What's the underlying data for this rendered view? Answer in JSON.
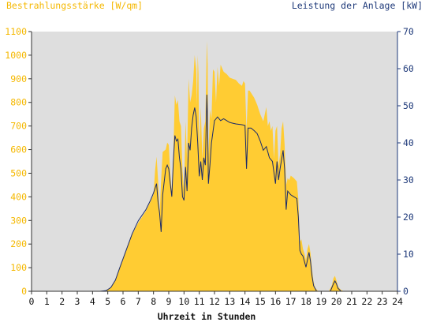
{
  "chart_data": {
    "type": "area",
    "left_axis_title": "Bestrahlungsstärke [W/qm]",
    "right_axis_title": "Leistung der Anlage [kW]",
    "xlabel": "Uhrzeit in Stunden",
    "x_ticks": [
      "0",
      "1",
      "2",
      "3",
      "4",
      "5",
      "6",
      "7",
      "8",
      "9",
      "10",
      "11",
      "12",
      "13",
      "14",
      "15",
      "16",
      "17",
      "18",
      "19",
      "20",
      "21",
      "22",
      "23",
      "24"
    ],
    "xlim": [
      0,
      24
    ],
    "ylim_left": [
      0,
      1100
    ],
    "ylim_right": [
      0,
      70
    ],
    "y_ticks_left": [
      "0",
      "100",
      "200",
      "300",
      "400",
      "500",
      "600",
      "700",
      "800",
      "900",
      "1000",
      "1100"
    ],
    "y_ticks_right": [
      "0",
      "10",
      "20",
      "30",
      "40",
      "50",
      "60",
      "70"
    ],
    "grid": false,
    "colors": {
      "irradiance_fill": "#ffcc33",
      "power_line": "#1a2a6a",
      "left_axis_text": "#f5b800",
      "right_axis_text": "#1f3a7a",
      "plot_background": "#dedede"
    },
    "series": [
      {
        "axis": "left",
        "style": "area",
        "points": [
          [
            0,
            0
          ],
          [
            4.5,
            0
          ],
          [
            4.9,
            3
          ],
          [
            5.2,
            15
          ],
          [
            5.5,
            45
          ],
          [
            5.8,
            100
          ],
          [
            6.2,
            170
          ],
          [
            6.6,
            240
          ],
          [
            7.0,
            290
          ],
          [
            7.5,
            340
          ],
          [
            7.8,
            380
          ],
          [
            8.0,
            410
          ],
          [
            8.1,
            510
          ],
          [
            8.2,
            570
          ],
          [
            8.3,
            470
          ],
          [
            8.4,
            330
          ],
          [
            8.5,
            470
          ],
          [
            8.6,
            590
          ],
          [
            8.8,
            600
          ],
          [
            8.9,
            630
          ],
          [
            9.0,
            620
          ],
          [
            9.1,
            500
          ],
          [
            9.2,
            420
          ],
          [
            9.3,
            580
          ],
          [
            9.4,
            830
          ],
          [
            9.5,
            790
          ],
          [
            9.6,
            810
          ],
          [
            9.7,
            720
          ],
          [
            9.8,
            700
          ],
          [
            9.9,
            510
          ],
          [
            10.0,
            430
          ],
          [
            10.1,
            720
          ],
          [
            10.2,
            560
          ],
          [
            10.3,
            900
          ],
          [
            10.4,
            800
          ],
          [
            10.5,
            830
          ],
          [
            10.6,
            890
          ],
          [
            10.7,
            1000
          ],
          [
            10.8,
            940
          ],
          [
            10.85,
            790
          ],
          [
            10.9,
            1000
          ],
          [
            10.95,
            920
          ],
          [
            11.0,
            600
          ],
          [
            11.1,
            780
          ],
          [
            11.2,
            560
          ],
          [
            11.3,
            690
          ],
          [
            11.4,
            720
          ],
          [
            11.5,
            1060
          ],
          [
            11.55,
            960
          ],
          [
            11.6,
            560
          ],
          [
            11.7,
            770
          ],
          [
            11.8,
            730
          ],
          [
            11.9,
            940
          ],
          [
            12.0,
            930
          ],
          [
            12.1,
            800
          ],
          [
            12.2,
            950
          ],
          [
            12.3,
            870
          ],
          [
            12.4,
            960
          ],
          [
            12.6,
            930
          ],
          [
            12.8,
            920
          ],
          [
            13.0,
            905
          ],
          [
            13.2,
            900
          ],
          [
            13.4,
            895
          ],
          [
            13.6,
            880
          ],
          [
            13.8,
            870
          ],
          [
            13.9,
            890
          ],
          [
            14.0,
            880
          ],
          [
            14.1,
            680
          ],
          [
            14.2,
            850
          ],
          [
            14.3,
            850
          ],
          [
            14.4,
            840
          ],
          [
            14.6,
            820
          ],
          [
            14.8,
            790
          ],
          [
            14.9,
            770
          ],
          [
            15.0,
            750
          ],
          [
            15.2,
            720
          ],
          [
            15.4,
            780
          ],
          [
            15.5,
            700
          ],
          [
            15.6,
            720
          ],
          [
            15.7,
            680
          ],
          [
            15.8,
            700
          ],
          [
            15.9,
            560
          ],
          [
            16.0,
            680
          ],
          [
            16.1,
            700
          ],
          [
            16.2,
            530
          ],
          [
            16.3,
            580
          ],
          [
            16.4,
            690
          ],
          [
            16.5,
            720
          ],
          [
            16.6,
            620
          ],
          [
            16.7,
            450
          ],
          [
            16.8,
            480
          ],
          [
            16.9,
            470
          ],
          [
            17.0,
            490
          ],
          [
            17.2,
            480
          ],
          [
            17.4,
            465
          ],
          [
            17.5,
            390
          ],
          [
            17.6,
            210
          ],
          [
            17.7,
            220
          ],
          [
            17.8,
            180
          ],
          [
            17.9,
            160
          ],
          [
            18.0,
            130
          ],
          [
            18.1,
            180
          ],
          [
            18.2,
            200
          ],
          [
            18.3,
            160
          ],
          [
            18.4,
            90
          ],
          [
            18.5,
            40
          ],
          [
            18.6,
            15
          ],
          [
            18.8,
            0
          ],
          [
            19.5,
            0
          ],
          [
            19.7,
            25
          ],
          [
            19.8,
            55
          ],
          [
            19.9,
            65
          ],
          [
            20.0,
            45
          ],
          [
            20.1,
            20
          ],
          [
            20.3,
            5
          ],
          [
            20.5,
            0
          ],
          [
            24,
            0
          ]
        ]
      },
      {
        "axis": "right",
        "style": "line",
        "points": [
          [
            0,
            0
          ],
          [
            4.5,
            0
          ],
          [
            4.9,
            0.2
          ],
          [
            5.2,
            1
          ],
          [
            5.5,
            3
          ],
          [
            5.8,
            6.5
          ],
          [
            6.2,
            11
          ],
          [
            6.6,
            15.5
          ],
          [
            7.0,
            19
          ],
          [
            7.5,
            22
          ],
          [
            7.8,
            24.5
          ],
          [
            8.0,
            26.5
          ],
          [
            8.2,
            29
          ],
          [
            8.3,
            24
          ],
          [
            8.4,
            21
          ],
          [
            8.5,
            16
          ],
          [
            8.6,
            26
          ],
          [
            8.8,
            33
          ],
          [
            8.9,
            34
          ],
          [
            9.0,
            33
          ],
          [
            9.1,
            29
          ],
          [
            9.2,
            25.5
          ],
          [
            9.3,
            35
          ],
          [
            9.4,
            42
          ],
          [
            9.5,
            40.5
          ],
          [
            9.6,
            41
          ],
          [
            9.7,
            36
          ],
          [
            9.8,
            33
          ],
          [
            9.9,
            25.5
          ],
          [
            10.0,
            24.5
          ],
          [
            10.1,
            33.5
          ],
          [
            10.2,
            27
          ],
          [
            10.3,
            40
          ],
          [
            10.4,
            38
          ],
          [
            10.5,
            44
          ],
          [
            10.6,
            47.5
          ],
          [
            10.7,
            49.5
          ],
          [
            10.8,
            47
          ],
          [
            10.9,
            40
          ],
          [
            11.0,
            31
          ],
          [
            11.1,
            35
          ],
          [
            11.2,
            30
          ],
          [
            11.3,
            36
          ],
          [
            11.4,
            34
          ],
          [
            11.5,
            53
          ],
          [
            11.55,
            45
          ],
          [
            11.6,
            29
          ],
          [
            11.7,
            34
          ],
          [
            11.8,
            40
          ],
          [
            11.9,
            43
          ],
          [
            12.0,
            46
          ],
          [
            12.2,
            47
          ],
          [
            12.4,
            46
          ],
          [
            12.6,
            46.5
          ],
          [
            12.8,
            46
          ],
          [
            13.0,
            45.5
          ],
          [
            13.2,
            45.3
          ],
          [
            13.4,
            45.1
          ],
          [
            13.6,
            45
          ],
          [
            13.8,
            44.9
          ],
          [
            14.0,
            44.7
          ],
          [
            14.1,
            33
          ],
          [
            14.2,
            44
          ],
          [
            14.4,
            44
          ],
          [
            14.6,
            43.3
          ],
          [
            14.8,
            42.5
          ],
          [
            15.0,
            40.5
          ],
          [
            15.2,
            38
          ],
          [
            15.4,
            39
          ],
          [
            15.6,
            36
          ],
          [
            15.8,
            35
          ],
          [
            16.0,
            29
          ],
          [
            16.1,
            35
          ],
          [
            16.2,
            30
          ],
          [
            16.3,
            33
          ],
          [
            16.5,
            38
          ],
          [
            16.6,
            33
          ],
          [
            16.7,
            22
          ],
          [
            16.8,
            27
          ],
          [
            16.9,
            26.5
          ],
          [
            17.0,
            26
          ],
          [
            17.2,
            25.5
          ],
          [
            17.4,
            25
          ],
          [
            17.5,
            20
          ],
          [
            17.6,
            11
          ],
          [
            17.7,
            10
          ],
          [
            17.8,
            9.5
          ],
          [
            17.9,
            8
          ],
          [
            18.0,
            6.5
          ],
          [
            18.1,
            8.5
          ],
          [
            18.2,
            10.5
          ],
          [
            18.3,
            8
          ],
          [
            18.4,
            4
          ],
          [
            18.5,
            1.5
          ],
          [
            18.7,
            0
          ],
          [
            19.6,
            0
          ],
          [
            19.8,
            2
          ],
          [
            19.9,
            2.8
          ],
          [
            20.0,
            2
          ],
          [
            20.1,
            0.8
          ],
          [
            20.3,
            0
          ],
          [
            24,
            0
          ]
        ]
      }
    ]
  }
}
